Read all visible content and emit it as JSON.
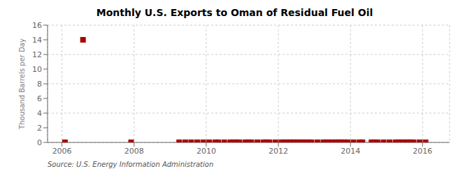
{
  "chart_data": {
    "type": "scatter",
    "title": "Monthly U.S. Exports to Oman of Residual Fuel Oil",
    "ylabel": "Thousand Barrels per Day",
    "annotations": [
      "Source: U.S. Energy Information Administration"
    ],
    "color": "#aa0000",
    "marker": "square",
    "grid": true,
    "xlim": [
      2005.6,
      2016.75
    ],
    "ylim": [
      0,
      16
    ],
    "xticks": [
      2006,
      2008,
      2010,
      2012,
      2014,
      2016
    ],
    "yticks": [
      0,
      2,
      4,
      6,
      8,
      10,
      12,
      14,
      16
    ],
    "x": [
      2006.583,
      2006.083,
      2007.917,
      2009.25,
      2009.417,
      2009.583,
      2009.75,
      2009.917,
      2010.083,
      2010.25,
      2010.333,
      2010.5,
      2010.667,
      2010.75,
      2010.833,
      2010.917,
      2011.083,
      2011.167,
      2011.25,
      2011.417,
      2011.583,
      2011.667,
      2011.75,
      2011.917,
      2012.083,
      2012.167,
      2012.25,
      2012.333,
      2012.417,
      2012.5,
      2012.583,
      2012.667,
      2012.75,
      2012.833,
      2012.917,
      2013.083,
      2013.25,
      2013.333,
      2013.417,
      2013.5,
      2013.583,
      2013.667,
      2013.75,
      2013.833,
      2013.917,
      2014.083,
      2014.25,
      2014.333,
      2014.583,
      2014.667,
      2014.75,
      2014.917,
      2015.083,
      2015.25,
      2015.333,
      2015.417,
      2015.5,
      2015.583,
      2015.667,
      2015.75,
      2015.917,
      2016.083
    ],
    "values": [
      14.0,
      0.02,
      0.02,
      0.02,
      0.02,
      0.02,
      0.02,
      0.02,
      0.02,
      0.02,
      0.02,
      0.02,
      0.02,
      0.02,
      0.02,
      0.02,
      0.02,
      0.02,
      0.02,
      0.02,
      0.02,
      0.02,
      0.02,
      0.02,
      0.02,
      0.02,
      0.02,
      0.02,
      0.02,
      0.02,
      0.02,
      0.02,
      0.02,
      0.02,
      0.02,
      0.02,
      0.02,
      0.02,
      0.02,
      0.02,
      0.02,
      0.02,
      0.02,
      0.02,
      0.02,
      0.02,
      0.02,
      0.02,
      0.02,
      0.02,
      0.02,
      0.02,
      0.02,
      0.02,
      0.02,
      0.02,
      0.02,
      0.02,
      0.02,
      0.02,
      0.02,
      0.02
    ]
  }
}
